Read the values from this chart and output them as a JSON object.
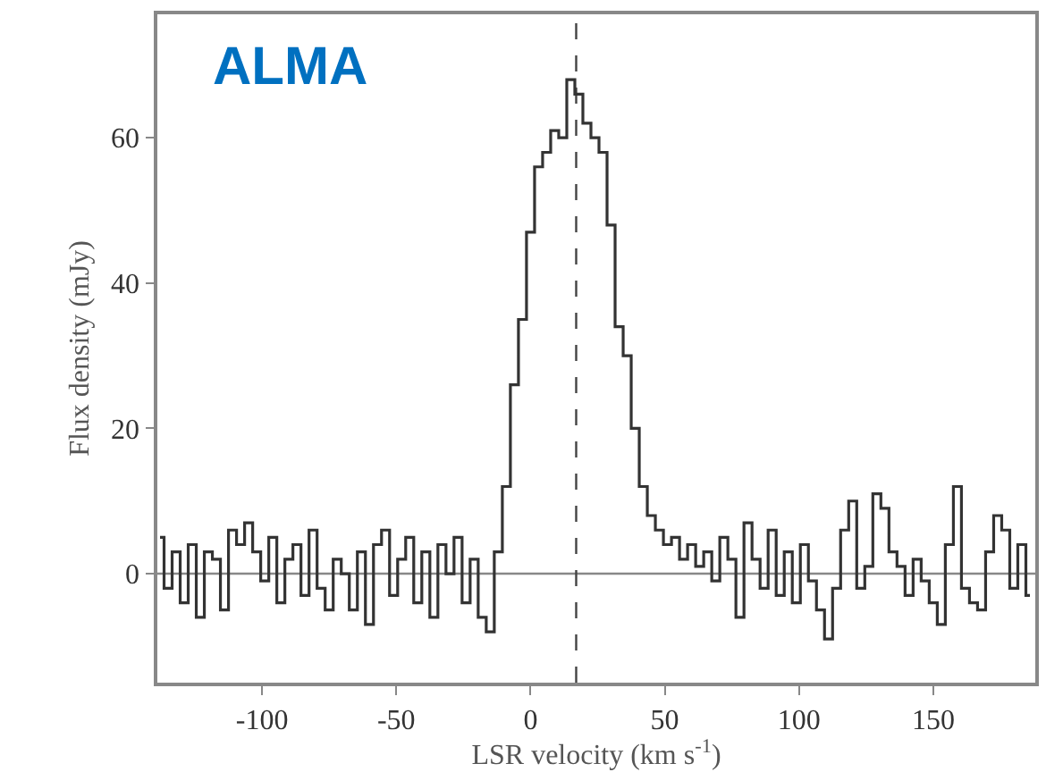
{
  "chart_data": {
    "type": "step",
    "xlabel": "LSR velocity (km s$^{-1}$)",
    "ylabel": "Flux density (mJy)",
    "annotations": [
      "ALMA"
    ],
    "x": [
      -138,
      -135,
      -132,
      -129,
      -126,
      -123,
      -120,
      -117,
      -114,
      -111,
      -108,
      -105,
      -102,
      -99,
      -96,
      -93,
      -90,
      -87,
      -84,
      -81,
      -78,
      -75,
      -72,
      -69,
      -66,
      -63,
      -60,
      -57,
      -54,
      -51,
      -48,
      -45,
      -42,
      -39,
      -36,
      -33,
      -30,
      -27,
      -24,
      -21,
      -18,
      -15,
      -12,
      -9,
      -6,
      -3,
      0,
      3,
      6,
      9,
      12,
      15,
      18,
      21,
      24,
      27,
      30,
      33,
      36,
      39,
      42,
      45,
      48,
      51,
      54,
      57,
      60,
      63,
      66,
      69,
      72,
      75,
      78,
      81,
      84,
      87,
      90,
      93,
      96,
      99,
      102,
      105,
      108,
      111,
      114,
      117,
      120,
      123,
      126,
      129,
      132,
      135,
      138,
      141,
      144,
      147,
      150,
      153,
      156,
      159,
      162,
      165,
      168,
      171,
      174,
      177,
      180,
      183,
      186
    ],
    "series": [
      {
        "color": "#333333",
        "values": [
          5,
          -2,
          3,
          -4,
          4,
          -6,
          3,
          2,
          -5,
          6,
          4,
          7,
          3,
          -1,
          5,
          -4,
          2,
          4,
          -3,
          6,
          -2,
          -5,
          2,
          0,
          -5,
          3,
          -7,
          4,
          6,
          -3,
          2,
          5,
          -4,
          3,
          -6,
          4,
          0,
          5,
          -4,
          2,
          -6,
          -8,
          3,
          12,
          26,
          35,
          47,
          56,
          58,
          61,
          60,
          68,
          66,
          62,
          60,
          58,
          48,
          34,
          30,
          20,
          12,
          8,
          6,
          4,
          5,
          2,
          4,
          1,
          3,
          -1,
          5,
          2,
          -6,
          7,
          2,
          -2,
          6,
          -3,
          3,
          -4,
          4,
          -1,
          -5,
          -9,
          -2,
          6,
          10,
          -2,
          1,
          11,
          9,
          3,
          1,
          -3,
          2,
          -1,
          -4,
          -7,
          4,
          12,
          -2,
          -4,
          -5,
          3,
          8,
          6,
          -2,
          4,
          -3
        ]
      }
    ],
    "xlim": [
      -139,
      188
    ],
    "ylim": [
      -15,
      77
    ],
    "xticks": [
      -100,
      -50,
      0,
      50,
      100,
      150
    ],
    "yticks": [
      0,
      20,
      40,
      60
    ],
    "ref_lines": [
      {
        "axis": "y",
        "value": 0,
        "color": "#888888",
        "line_style": "solid"
      },
      {
        "axis": "x",
        "value": 17,
        "color": "#444444",
        "line_style": "dashed"
      }
    ],
    "grid": false,
    "line_style": "solid",
    "marker": "none"
  }
}
